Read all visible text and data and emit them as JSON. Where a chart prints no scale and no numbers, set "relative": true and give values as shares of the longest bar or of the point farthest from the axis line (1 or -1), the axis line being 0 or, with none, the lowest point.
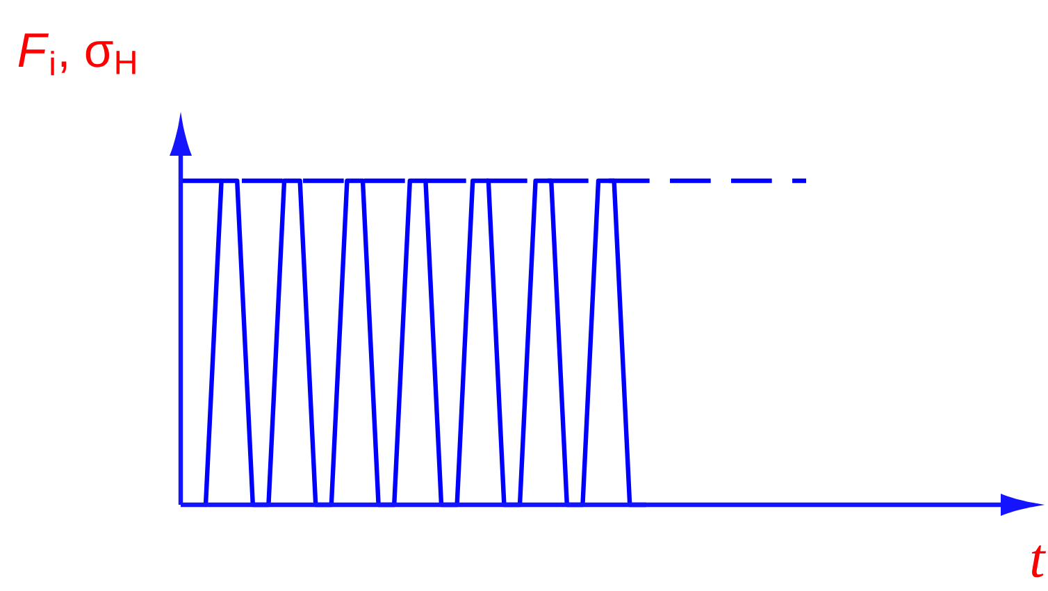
{
  "chart_data": {
    "type": "line",
    "relative": true,
    "annotations": [
      "t"
    ],
    "ylabel": "*F*$_{i}$, σ$_{H}$",
    "color": "#0000ff",
    "line_style": "solid",
    "categories": [
      null,
      null,
      null,
      null,
      null,
      null,
      null,
      null,
      null,
      null,
      null,
      null,
      null,
      null,
      null,
      null,
      null,
      null,
      null,
      null,
      null,
      null,
      null,
      null,
      null,
      null,
      null,
      null,
      null
    ],
    "values": [
      0,
      1,
      1,
      0,
      0,
      1,
      1,
      0,
      0,
      1,
      1,
      0,
      0,
      1,
      1,
      0,
      0,
      1,
      1,
      0,
      0,
      1,
      1,
      0,
      0,
      1,
      1,
      0,
      0
    ],
    "ref_lines": [
      {
        "axis": "y",
        "value": 1,
        "color": "#0000ff",
        "line_style": "dashed"
      }
    ]
  }
}
